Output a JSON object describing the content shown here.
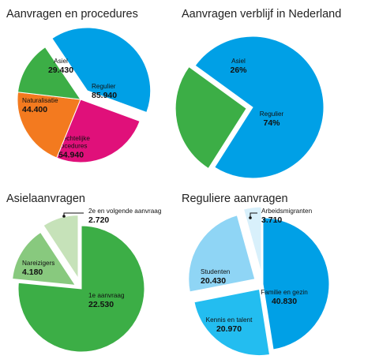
{
  "chart_data": [
    {
      "type": "pie",
      "title": "Aanvragen en procedures",
      "slices": [
        {
          "name": "Regulier",
          "value": "85.940",
          "color": "#00a0e6"
        },
        {
          "name": "Gerechtelijke procedures",
          "value": "54.940",
          "color": "#e0107a"
        },
        {
          "name": "Naturalisatie",
          "value": "44.400",
          "color": "#f37a1f"
        },
        {
          "name": "Asiel",
          "value": "29.430",
          "color": "#3cae46"
        }
      ]
    },
    {
      "type": "pie",
      "title": "Aanvragen verblijf in Nederland",
      "slices": [
        {
          "name": "Regulier",
          "value": "74%",
          "color": "#00a0e6"
        },
        {
          "name": "Asiel",
          "value": "26%",
          "color": "#3cae46"
        }
      ]
    },
    {
      "type": "pie",
      "title": "Asielaanvragen",
      "slices": [
        {
          "name": "1e aanvraag",
          "value": "22.530",
          "color": "#3cae46"
        },
        {
          "name": "Nareizigers",
          "value": "4.180",
          "color": "#88c97e"
        },
        {
          "name": "2e en volgende aanvraag",
          "value": "2.720",
          "color": "#c6e2b9"
        }
      ]
    },
    {
      "type": "pie",
      "title": "Reguliere aanvragen",
      "slices": [
        {
          "name": "Familie en gezin",
          "value": "40.830",
          "color": "#00a0e6"
        },
        {
          "name": "Kennis en talent",
          "value": "20.970",
          "color": "#23bdf0"
        },
        {
          "name": "Studenten",
          "value": "20.430",
          "color": "#8fd5f5"
        },
        {
          "name": "Arbeidsmigranten",
          "value": "3.710",
          "color": "#d8f0fb"
        }
      ]
    }
  ]
}
